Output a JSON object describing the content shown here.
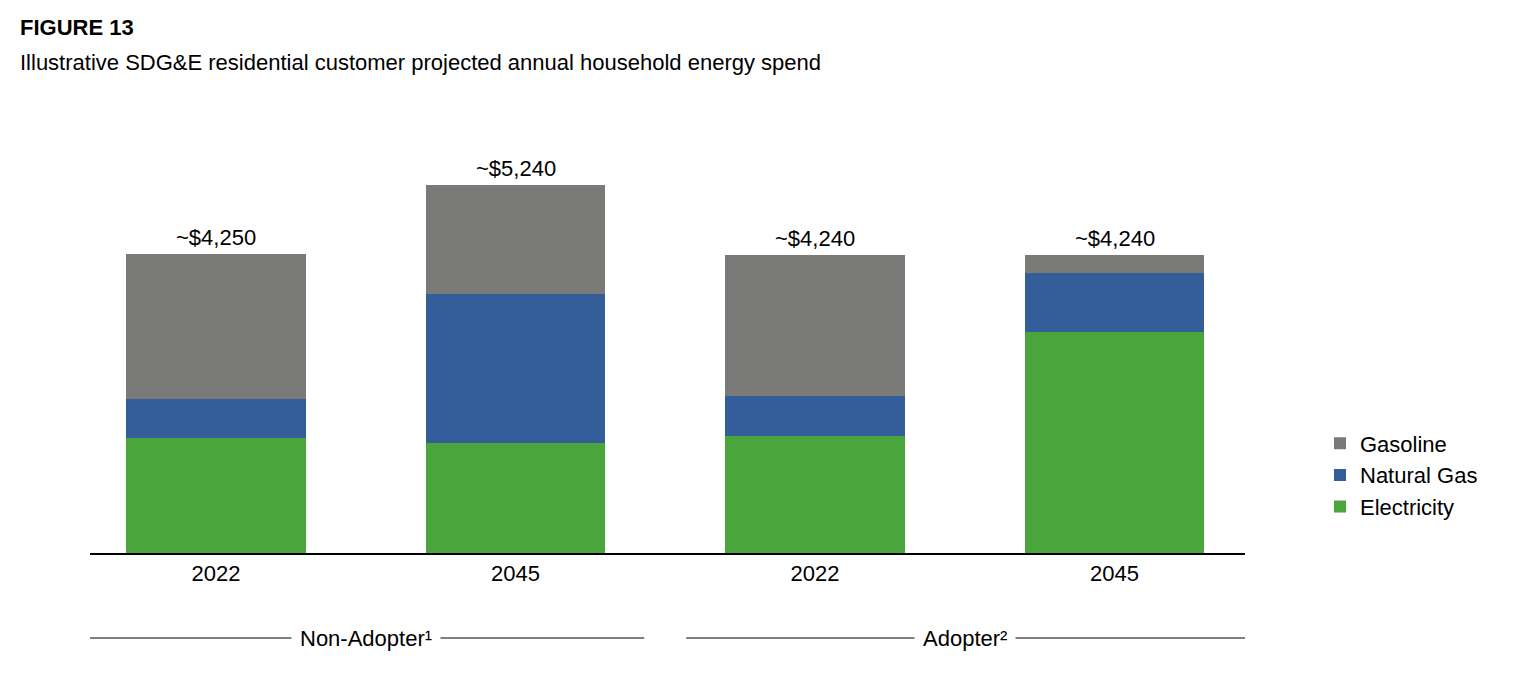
{
  "chart_data": {
    "type": "bar",
    "stacked": true,
    "title": "FIGURE 13",
    "subtitle": "Illustrative SDG&E residential customer projected annual household energy spend",
    "categories": [
      "2022",
      "2045",
      "2022",
      "2045"
    ],
    "groups": [
      {
        "name": "Non-Adopter¹",
        "count": 2
      },
      {
        "name": "Adopter²",
        "count": 2
      }
    ],
    "series": [
      {
        "name": "Electricity",
        "color": "#4aa63c",
        "values": [
          1630,
          1560,
          1660,
          3140
        ]
      },
      {
        "name": "Natural Gas",
        "color": "#345e9a",
        "values": [
          560,
          2120,
          570,
          850
        ]
      },
      {
        "name": "Gasoline",
        "color": "#7a7a78",
        "values": [
          2060,
          1560,
          2010,
          250
        ]
      }
    ],
    "totals": [
      4250,
      5240,
      4240,
      4240
    ],
    "total_labels": [
      "~$4,250",
      "~$5,240",
      "~$4,240",
      "~$4,240"
    ],
    "tick_labels": "x",
    "grid": false,
    "legend": "right"
  }
}
